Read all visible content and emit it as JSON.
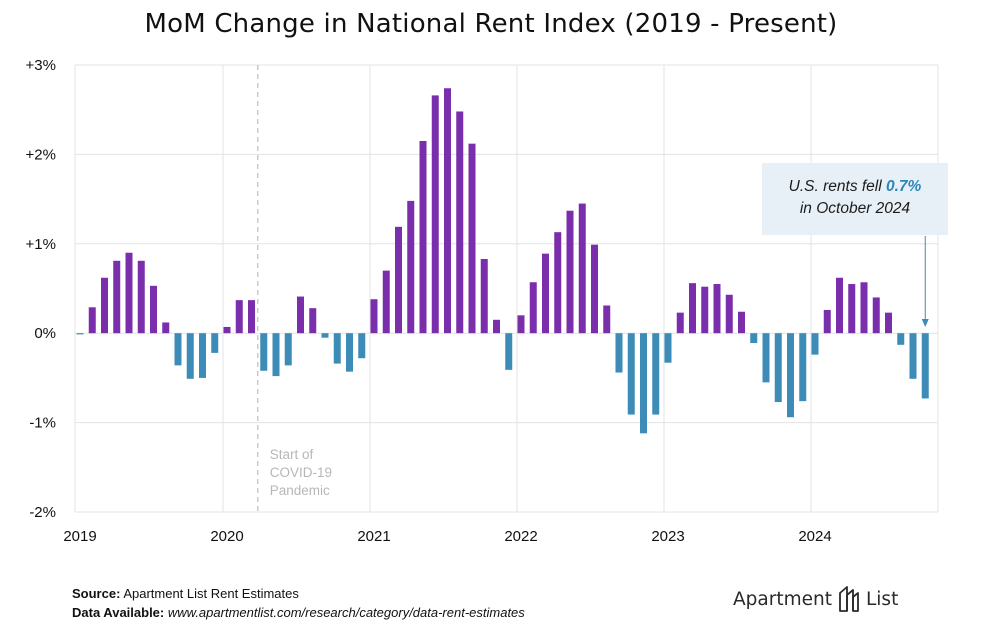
{
  "chart_data": {
    "type": "bar",
    "title": "MoM Change in National Rent Index (2019 - Present)",
    "ylim": [
      -2,
      3
    ],
    "ytick_labels": [
      {
        "value": 3,
        "label": "+3%"
      },
      {
        "value": 2,
        "label": "+2%"
      },
      {
        "value": 1,
        "label": "+1%"
      },
      {
        "value": 0,
        "label": "0%"
      },
      {
        "value": -1,
        "label": "-1%"
      },
      {
        "value": -2,
        "label": "-2%"
      }
    ],
    "xtick_labels": [
      "2019",
      "2020",
      "2021",
      "2022",
      "2023",
      "2024"
    ],
    "grid": true,
    "colors": {
      "positive": "#7b2eac",
      "negative": "#3d8cb7"
    },
    "months": [
      "2019-01",
      "2019-02",
      "2019-03",
      "2019-04",
      "2019-05",
      "2019-06",
      "2019-07",
      "2019-08",
      "2019-09",
      "2019-10",
      "2019-11",
      "2019-12",
      "2020-01",
      "2020-02",
      "2020-03",
      "2020-04",
      "2020-05",
      "2020-06",
      "2020-07",
      "2020-08",
      "2020-09",
      "2020-10",
      "2020-11",
      "2020-12",
      "2021-01",
      "2021-02",
      "2021-03",
      "2021-04",
      "2021-05",
      "2021-06",
      "2021-07",
      "2021-08",
      "2021-09",
      "2021-10",
      "2021-11",
      "2021-12",
      "2022-01",
      "2022-02",
      "2022-03",
      "2022-04",
      "2022-05",
      "2022-06",
      "2022-07",
      "2022-08",
      "2022-09",
      "2022-10",
      "2022-11",
      "2022-12",
      "2023-01",
      "2023-02",
      "2023-03",
      "2023-04",
      "2023-05",
      "2023-06",
      "2023-07",
      "2023-08",
      "2023-09",
      "2023-10",
      "2023-11",
      "2023-12",
      "2024-01",
      "2024-02",
      "2024-03",
      "2024-04",
      "2024-05",
      "2024-06",
      "2024-07",
      "2024-08",
      "2024-09",
      "2024-10"
    ],
    "values": [
      -0.01,
      0.29,
      0.62,
      0.81,
      0.9,
      0.81,
      0.53,
      0.12,
      -0.36,
      -0.51,
      -0.5,
      -0.22,
      0.07,
      0.37,
      0.37,
      -0.42,
      -0.48,
      -0.36,
      0.41,
      0.28,
      -0.05,
      -0.34,
      -0.43,
      -0.28,
      0.38,
      0.7,
      1.19,
      1.48,
      2.15,
      2.66,
      2.74,
      2.48,
      2.12,
      0.83,
      0.15,
      -0.41,
      0.2,
      0.57,
      0.89,
      1.13,
      1.37,
      1.45,
      0.99,
      0.31,
      -0.44,
      -0.91,
      -1.12,
      -0.91,
      -0.33,
      0.23,
      0.56,
      0.52,
      0.55,
      0.43,
      0.24,
      -0.11,
      -0.55,
      -0.77,
      -0.94,
      -0.76,
      -0.24,
      0.26,
      0.62,
      0.55,
      0.57,
      0.4,
      0.23,
      -0.13,
      -0.51,
      -0.73
    ],
    "annotations": {
      "covid_marker": {
        "month": "2020-04",
        "lines": [
          "Start of",
          "COVID-19",
          "Pandemic"
        ]
      },
      "callout": {
        "prefix": "U.S. rents fell",
        "value": "0.7%",
        "suffix": "in October 2024",
        "month": "2024-10"
      }
    }
  },
  "footer": {
    "source_label": "Source:",
    "source_text": "Apartment List Rent Estimates",
    "data_label": "Data Available:",
    "data_url": "www.apartmentlist.com/research/category/data-rent-estimates"
  },
  "logo": {
    "text_left": "Apartment",
    "text_right": "List"
  }
}
